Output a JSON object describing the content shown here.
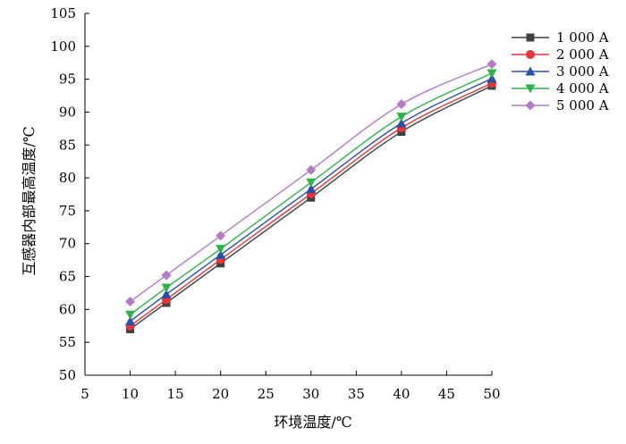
{
  "chart_data": {
    "type": "line",
    "xlabel": "环境温度/℃",
    "ylabel": "互感器内部最高温度/℃",
    "xlim": [
      5,
      50
    ],
    "ylim": [
      50,
      105
    ],
    "x_ticks": [
      "5",
      "10",
      "15",
      "20",
      "25",
      "30",
      "35",
      "40",
      "45",
      "50"
    ],
    "y_ticks": [
      "50",
      "55",
      "60",
      "65",
      "70",
      "75",
      "80",
      "85",
      "90",
      "95",
      "100",
      "105"
    ],
    "x": [
      10,
      14,
      20,
      30,
      40,
      50
    ],
    "grid": false,
    "legend_position": "top-right",
    "series": [
      {
        "name": "1 000 A",
        "marker": "square",
        "color": "#404040",
        "values": [
          57.0,
          61.0,
          67.0,
          77.0,
          87.0,
          94.0
        ]
      },
      {
        "name": "2 000 A",
        "marker": "circle",
        "color": "#e8323c",
        "values": [
          57.5,
          61.5,
          67.6,
          77.6,
          87.6,
          94.4
        ]
      },
      {
        "name": "3 000 A",
        "marker": "triangle-up",
        "color": "#2a4fa8",
        "values": [
          58.2,
          62.3,
          68.3,
          78.3,
          88.3,
          95.1
        ]
      },
      {
        "name": "4 000 A",
        "marker": "triangle-down",
        "color": "#2db34a",
        "values": [
          59.2,
          63.3,
          69.2,
          79.3,
          89.3,
          95.9
        ]
      },
      {
        "name": "5 000 A",
        "marker": "diamond",
        "color": "#b27bc4",
        "values": [
          61.2,
          65.2,
          71.2,
          81.2,
          91.2,
          97.3
        ]
      }
    ]
  }
}
